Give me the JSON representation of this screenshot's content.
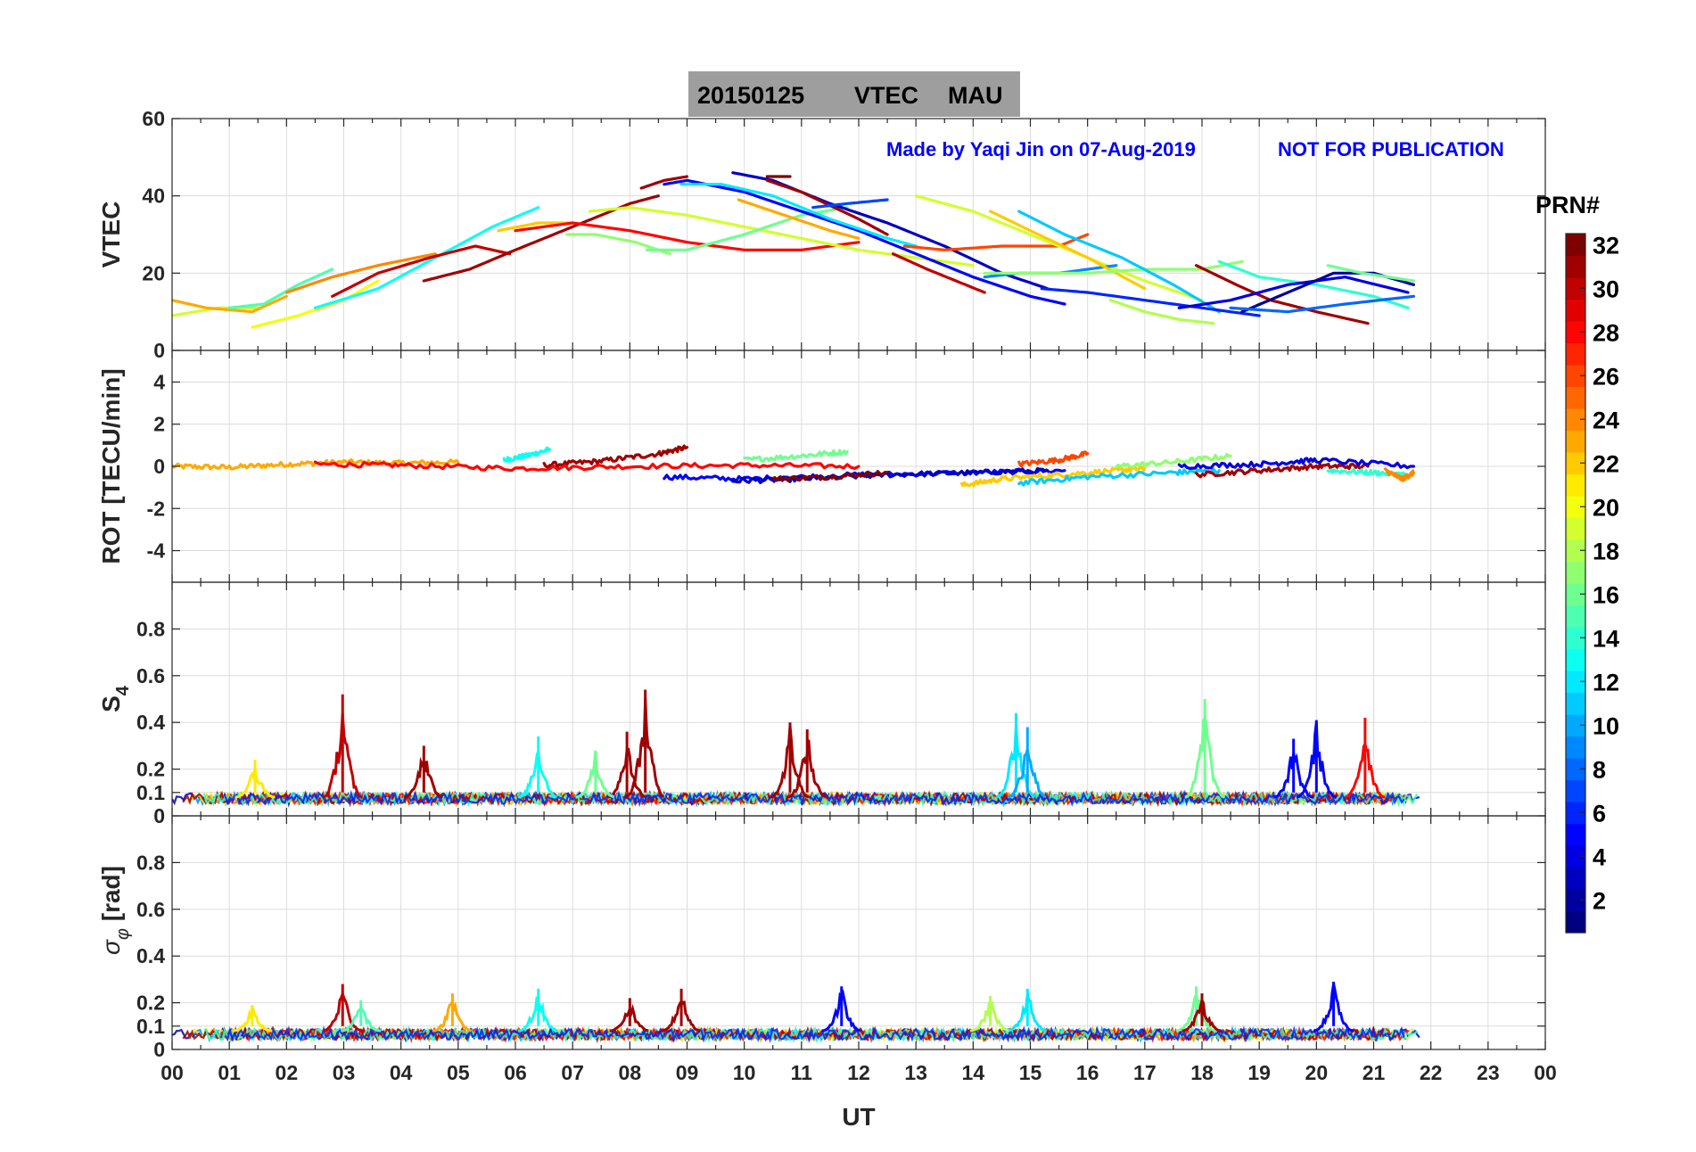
{
  "title": {
    "date": "20150125",
    "product": "VTEC",
    "station": "MAU",
    "box_color": "#9e9e9e"
  },
  "credit": {
    "made_by": "Made by Yaqi Jin on 07-Aug-2019",
    "notice": "NOT FOR PUBLICATION",
    "color": "#0000ff"
  },
  "xaxis": {
    "label": "UT",
    "range": [
      0,
      24
    ],
    "ticks": [
      0,
      1,
      2,
      3,
      4,
      5,
      6,
      7,
      8,
      9,
      10,
      11,
      12,
      13,
      14,
      15,
      16,
      17,
      18,
      19,
      20,
      21,
      22,
      23,
      24
    ],
    "tick_labels": [
      "00",
      "01",
      "02",
      "03",
      "04",
      "05",
      "06",
      "07",
      "08",
      "09",
      "10",
      "11",
      "12",
      "13",
      "14",
      "15",
      "16",
      "17",
      "18",
      "19",
      "20",
      "21",
      "22",
      "23",
      "00"
    ]
  },
  "colorbar": {
    "title": "PRN#",
    "colormap": "jet",
    "range": [
      1,
      32
    ],
    "tick_values": [
      2,
      4,
      6,
      8,
      10,
      12,
      14,
      16,
      18,
      20,
      22,
      24,
      26,
      28,
      30,
      32
    ],
    "tick_labels": [
      "2",
      "4",
      "6",
      "8",
      "10",
      "12",
      "14",
      "16",
      "18",
      "20",
      "22",
      "24",
      "26",
      "28",
      "30",
      "32"
    ]
  },
  "chart_data": [
    {
      "type": "line",
      "panel": "vtec",
      "ylabel": "VTEC",
      "ylim": [
        0,
        60
      ],
      "yticks": [
        0,
        20,
        40,
        60
      ],
      "ytick_labels": [
        "0",
        "20",
        "40",
        "60"
      ],
      "grid": true,
      "series": [
        {
          "prn": 19,
          "x": [
            0.0,
            0.8,
            1.5
          ],
          "values": [
            9,
            11,
            11
          ]
        },
        {
          "prn": 23,
          "x": [
            0.0,
            0.6,
            1.4,
            2.0
          ],
          "values": [
            13,
            11,
            10,
            14
          ]
        },
        {
          "prn": 15,
          "x": [
            1.0,
            1.6,
            2.2,
            2.8
          ],
          "values": [
            11,
            12,
            17,
            21
          ]
        },
        {
          "prn": 20,
          "x": [
            1.4,
            2.2,
            3.0,
            3.6
          ],
          "values": [
            6,
            9,
            13,
            18
          ]
        },
        {
          "prn": 24,
          "x": [
            2.0,
            2.8,
            3.6,
            4.6
          ],
          "values": [
            15,
            19,
            22,
            25
          ]
        },
        {
          "prn": 13,
          "x": [
            2.5,
            3.6,
            4.6,
            5.6,
            6.4
          ],
          "values": [
            11,
            16,
            24,
            32,
            37
          ]
        },
        {
          "prn": 30,
          "x": [
            2.8,
            3.6,
            4.5,
            5.3,
            5.9
          ],
          "values": [
            14,
            20,
            24,
            27,
            25
          ]
        },
        {
          "prn": 31,
          "x": [
            4.4,
            5.2,
            6.0,
            7.0,
            8.0,
            8.5
          ],
          "values": [
            18,
            21,
            26,
            32,
            38,
            40
          ]
        },
        {
          "prn": 22,
          "x": [
            5.7,
            6.4,
            7.0,
            7.5
          ],
          "values": [
            31,
            33,
            33,
            32
          ]
        },
        {
          "prn": 28,
          "x": [
            6.0,
            7.0,
            8.0,
            9.0,
            10.0,
            11.0,
            12.0
          ],
          "values": [
            31,
            33,
            31,
            28,
            26,
            26,
            28
          ]
        },
        {
          "prn": 17,
          "x": [
            6.9,
            7.4,
            8.1,
            8.7
          ],
          "values": [
            30,
            30,
            28,
            25
          ]
        },
        {
          "prn": 19,
          "x": [
            7.3,
            8.0,
            9.0,
            10.0,
            11.0,
            12.0,
            13.0,
            14.0
          ],
          "values": [
            36,
            37,
            35,
            32,
            29,
            26,
            24,
            22
          ]
        },
        {
          "prn": 16,
          "x": [
            8.3,
            9.0,
            10.0,
            11.0,
            11.8
          ],
          "values": [
            26,
            26,
            30,
            35,
            37
          ]
        },
        {
          "prn": 31,
          "x": [
            8.2,
            8.6,
            9.0
          ],
          "values": [
            42,
            44,
            45
          ]
        },
        {
          "prn": 5,
          "x": [
            8.6,
            9.0,
            10.0,
            11.0,
            12.0,
            13.0,
            14.0,
            15.0,
            15.6
          ],
          "values": [
            43,
            44,
            41,
            36,
            31,
            25,
            19,
            14,
            12
          ]
        },
        {
          "prn": 12,
          "x": [
            8.9,
            9.6,
            10.5,
            11.5,
            12.5,
            13.0
          ],
          "values": [
            43,
            43,
            40,
            34,
            29,
            27
          ]
        },
        {
          "prn": 3,
          "x": [
            9.8,
            10.5,
            11.5,
            12.5,
            13.5,
            14.5,
            15.3
          ],
          "values": [
            46,
            44,
            38,
            33,
            27,
            20,
            16
          ]
        },
        {
          "prn": 23,
          "x": [
            9.9,
            10.5,
            11.5,
            12.0
          ],
          "values": [
            39,
            36,
            31,
            29
          ]
        },
        {
          "prn": 31,
          "x": [
            10.4,
            11.0,
            12.0,
            12.5
          ],
          "values": [
            44,
            41,
            34,
            30
          ]
        },
        {
          "prn": 32,
          "x": [
            10.4,
            10.8
          ],
          "values": [
            45,
            45
          ]
        },
        {
          "prn": 7,
          "x": [
            11.2,
            11.8,
            12.5
          ],
          "values": [
            37,
            38,
            39
          ]
        },
        {
          "prn": 30,
          "x": [
            12.6,
            13.2,
            13.7,
            14.2
          ],
          "values": [
            25,
            21,
            18,
            15
          ]
        },
        {
          "prn": 26,
          "x": [
            12.8,
            13.5,
            14.5,
            15.5,
            16.0
          ],
          "values": [
            27,
            26,
            27,
            27,
            30
          ]
        },
        {
          "prn": 19,
          "x": [
            13.0,
            14.0,
            15.0,
            16.0,
            17.0,
            18.0
          ],
          "values": [
            40,
            36,
            30,
            24,
            18,
            13
          ]
        },
        {
          "prn": 9,
          "x": [
            14.2,
            14.8,
            15.5,
            16.5
          ],
          "values": [
            19,
            20,
            20,
            22
          ]
        },
        {
          "prn": 22,
          "x": [
            14.3,
            15.0,
            16.0,
            17.0
          ],
          "values": [
            36,
            31,
            24,
            16
          ]
        },
        {
          "prn": 17,
          "x": [
            14.2,
            15.0,
            16.0,
            17.0,
            18.0,
            18.7
          ],
          "values": [
            20,
            20,
            20,
            21,
            21,
            23
          ]
        },
        {
          "prn": 11,
          "x": [
            14.8,
            15.6,
            16.6,
            17.5,
            18.3
          ],
          "values": [
            36,
            30,
            24,
            17,
            10
          ]
        },
        {
          "prn": 18,
          "x": [
            16.4,
            17.0,
            17.6,
            18.2
          ],
          "values": [
            13,
            10,
            8,
            7
          ]
        },
        {
          "prn": 6,
          "x": [
            15.2,
            16.0,
            17.0,
            18.0,
            19.0
          ],
          "values": [
            16,
            15,
            13,
            11,
            9
          ]
        },
        {
          "prn": 31,
          "x": [
            17.9,
            18.6,
            19.2,
            20.0,
            20.9
          ],
          "values": [
            22,
            17,
            13,
            10,
            7
          ]
        },
        {
          "prn": 14,
          "x": [
            18.3,
            19.0,
            20.0,
            21.0,
            21.6
          ],
          "values": [
            23,
            19,
            17,
            14,
            11
          ]
        },
        {
          "prn": 4,
          "x": [
            17.6,
            18.5,
            19.5,
            20.5,
            21.6
          ],
          "values": [
            11,
            13,
            17,
            19,
            15
          ]
        },
        {
          "prn": 2,
          "x": [
            18.7,
            19.5,
            20.3,
            21.0,
            21.7
          ],
          "values": [
            10,
            15,
            20,
            20,
            17
          ]
        },
        {
          "prn": 8,
          "x": [
            18.5,
            19.5,
            20.5,
            21.7
          ],
          "values": [
            11,
            10,
            12,
            14
          ]
        },
        {
          "prn": 16,
          "x": [
            20.2,
            20.8,
            21.7
          ],
          "values": [
            22,
            20,
            18
          ]
        }
      ]
    },
    {
      "type": "line",
      "panel": "rot",
      "ylabel": "ROT [TECU/min]",
      "ylim": [
        -5.5,
        5.5
      ],
      "yticks": [
        -4,
        -2,
        0,
        2,
        4
      ],
      "ytick_labels": [
        "-4",
        "-2",
        "0",
        "2",
        "4"
      ],
      "grid": true,
      "series": [
        {
          "prn": 23,
          "x": [
            0.0,
            1.0,
            2.0,
            3.0,
            4.0,
            5.0
          ],
          "values": [
            0.0,
            -0.05,
            0.1,
            0.2,
            0.15,
            0.2
          ]
        },
        {
          "prn": 13,
          "x": [
            5.8,
            6.2,
            6.6
          ],
          "values": [
            0.3,
            0.5,
            0.8
          ]
        },
        {
          "prn": 31,
          "x": [
            6.5,
            7.5,
            8.5,
            9.0
          ],
          "values": [
            0.05,
            0.25,
            0.6,
            0.9
          ]
        },
        {
          "prn": 28,
          "x": [
            2.5,
            4.0,
            6.0,
            8.0,
            10.0,
            12.0
          ],
          "values": [
            0.1,
            0.05,
            -0.1,
            0.0,
            0.05,
            0.0
          ]
        },
        {
          "prn": 5,
          "x": [
            8.6,
            10.0,
            12.0,
            14.0,
            15.6
          ],
          "values": [
            -0.5,
            -0.6,
            -0.4,
            -0.3,
            -0.2
          ]
        },
        {
          "prn": 3,
          "x": [
            9.8,
            11.0,
            12.5,
            14.0,
            15.3
          ],
          "values": [
            -0.7,
            -0.6,
            -0.4,
            -0.3,
            -0.2
          ]
        },
        {
          "prn": 16,
          "x": [
            10.0,
            11.0,
            11.8
          ],
          "values": [
            0.3,
            0.5,
            0.7
          ]
        },
        {
          "prn": 32,
          "x": [
            10.5,
            11.5,
            12.5
          ],
          "values": [
            -0.6,
            -0.5,
            -0.3
          ]
        },
        {
          "prn": 22,
          "x": [
            13.8,
            14.5,
            15.5,
            16.5,
            17.0
          ],
          "values": [
            -0.9,
            -0.6,
            -0.4,
            -0.2,
            -0.1
          ]
        },
        {
          "prn": 11,
          "x": [
            14.8,
            16.0,
            17.5,
            18.3
          ],
          "values": [
            -0.8,
            -0.5,
            -0.3,
            -0.2
          ]
        },
        {
          "prn": 26,
          "x": [
            14.8,
            15.5,
            16.0
          ],
          "values": [
            0.1,
            0.3,
            0.6
          ]
        },
        {
          "prn": 17,
          "x": [
            16.5,
            17.5,
            18.5
          ],
          "values": [
            0.0,
            0.2,
            0.5
          ]
        },
        {
          "prn": 31,
          "x": [
            17.9,
            19.0,
            20.0,
            20.9
          ],
          "values": [
            -0.4,
            -0.2,
            0.0,
            0.0
          ]
        },
        {
          "prn": 4,
          "x": [
            17.6,
            19.0,
            20.0,
            21.7
          ],
          "values": [
            0.0,
            0.1,
            0.3,
            0.0
          ]
        },
        {
          "prn": 14,
          "x": [
            20.2,
            21.0,
            21.6
          ],
          "values": [
            -0.2,
            -0.3,
            -0.4
          ]
        },
        {
          "prn": 24,
          "x": [
            21.2,
            21.5,
            21.7
          ],
          "values": [
            -0.2,
            -0.6,
            -0.3
          ]
        }
      ]
    },
    {
      "type": "line",
      "panel": "s4",
      "ylabel": "S4",
      "ylim": [
        0,
        1
      ],
      "yticks": [
        0,
        0.1,
        0.2,
        0.4,
        0.6,
        0.8
      ],
      "ytick_labels": [
        "0",
        "0.1",
        "0.2",
        "0.4",
        "0.6",
        "0.8"
      ],
      "grid": true,
      "spikes": [
        {
          "prn": 30,
          "x": 2.98,
          "value": 0.52
        },
        {
          "prn": 31,
          "x": 8.27,
          "value": 0.54
        },
        {
          "prn": 31,
          "x": 7.95,
          "value": 0.36
        },
        {
          "prn": 13,
          "x": 6.4,
          "value": 0.34
        },
        {
          "prn": 31,
          "x": 10.8,
          "value": 0.4
        },
        {
          "prn": 31,
          "x": 11.1,
          "value": 0.37
        },
        {
          "prn": 12,
          "x": 14.75,
          "value": 0.44
        },
        {
          "prn": 10,
          "x": 14.95,
          "value": 0.38
        },
        {
          "prn": 16,
          "x": 18.05,
          "value": 0.5
        },
        {
          "prn": 5,
          "x": 20.0,
          "value": 0.41
        },
        {
          "prn": 28,
          "x": 20.85,
          "value": 0.42
        },
        {
          "prn": 5,
          "x": 19.6,
          "value": 0.33
        },
        {
          "prn": 21,
          "x": 1.45,
          "value": 0.24
        },
        {
          "prn": 31,
          "x": 4.4,
          "value": 0.3
        },
        {
          "prn": 16,
          "x": 7.4,
          "value": 0.28
        }
      ]
    },
    {
      "type": "line",
      "panel": "sigma_phi",
      "ylabel": "σφ [rad]",
      "ylim": [
        0,
        1
      ],
      "yticks": [
        0,
        0.1,
        0.2,
        0.4,
        0.6,
        0.8
      ],
      "ytick_labels": [
        "0",
        "0.1",
        "0.2",
        "0.4",
        "0.6",
        "0.8"
      ],
      "grid": true,
      "spikes": [
        {
          "prn": 30,
          "x": 2.98,
          "value": 0.28
        },
        {
          "prn": 13,
          "x": 6.4,
          "value": 0.26
        },
        {
          "prn": 31,
          "x": 8.9,
          "value": 0.26
        },
        {
          "prn": 31,
          "x": 8.0,
          "value": 0.22
        },
        {
          "prn": 5,
          "x": 11.7,
          "value": 0.27
        },
        {
          "prn": 12,
          "x": 14.95,
          "value": 0.26
        },
        {
          "prn": 18,
          "x": 14.3,
          "value": 0.23
        },
        {
          "prn": 5,
          "x": 20.3,
          "value": 0.29
        },
        {
          "prn": 16,
          "x": 17.9,
          "value": 0.27
        },
        {
          "prn": 31,
          "x": 18.0,
          "value": 0.24
        },
        {
          "prn": 23,
          "x": 4.9,
          "value": 0.24
        },
        {
          "prn": 21,
          "x": 1.4,
          "value": 0.19
        },
        {
          "prn": 15,
          "x": 3.3,
          "value": 0.21
        }
      ]
    }
  ]
}
